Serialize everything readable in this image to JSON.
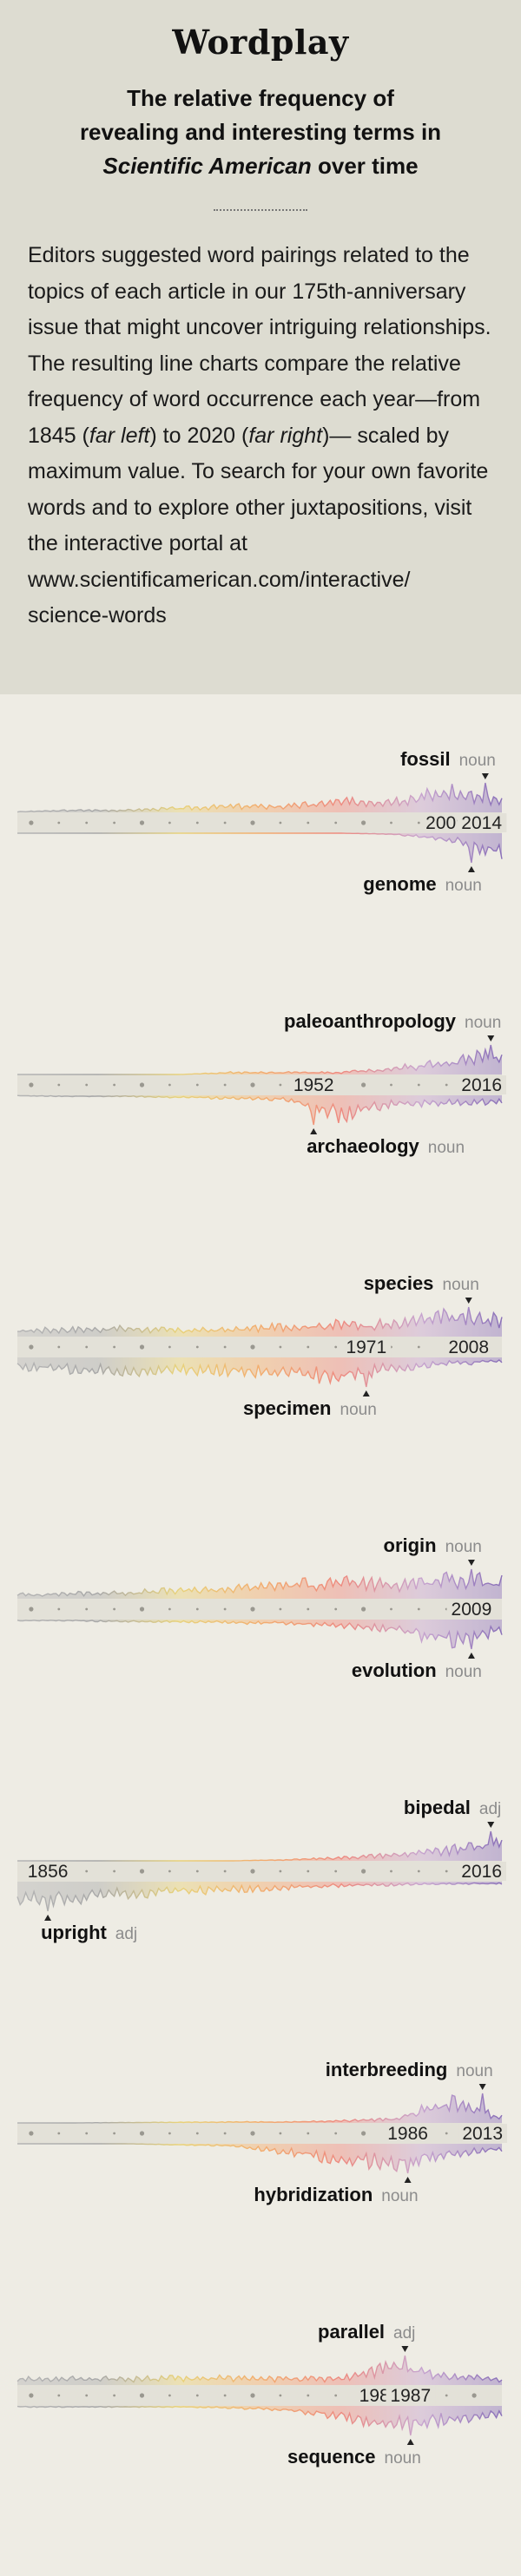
{
  "header": {
    "title": "Wordplay",
    "subtitle": {
      "line1": "The relative frequency of",
      "line2": "revealing and interesting terms in",
      "line3_italic": "Scientific American",
      "line3_rest": " over time"
    },
    "intro": {
      "part1": "Editors suggested word pairings related to the topics of each article in our 175th-anniversary issue that might uncover intriguing relationships. The resulting line charts compare the relative frequency of word occurrence each year—from 1845 (",
      "far_left": "far left",
      "part2": ") to 2020 (",
      "far_right": "far right",
      "part3": ")— scaled by maximum value. To search for your own favorite words and to explore other juxtapositions, visit the interactive portal at www.scientificamerican.com/interactive/ science-words"
    }
  },
  "colors": {
    "header_bg": "#dddcd1",
    "page_bg": "#eeece4",
    "baseline_band": "#e3e1d8",
    "axis_dots": "#9a9890",
    "label": "#111111",
    "pos_label": "#8c8c8c",
    "gradient": [
      "#b4b4b4",
      "#a8a8a8",
      "#e8d27a",
      "#f2ad6e",
      "#ee8a7f",
      "#c7a4cf",
      "#8a70b8"
    ]
  },
  "chart_data": [
    {
      "type": "area",
      "top_word": "fossil",
      "top_pos": "noun",
      "bottom_word": "genome",
      "bottom_pos": "noun",
      "x_range": [
        1845,
        2020
      ],
      "scale": "relative to maximum value",
      "annotated_years": [
        2009,
        2014
      ],
      "top_series": [
        0.03,
        0.1,
        0.1,
        0.2,
        0.3,
        0.3,
        0.5,
        0.6,
        1.0,
        0.5
      ],
      "top_peak_year": 2014,
      "bottom_series": [
        0.0,
        0.0,
        0.0,
        0.0,
        0.0,
        0.0,
        0.0,
        0.05,
        0.3,
        1.0
      ],
      "bottom_peak_year": 2009
    },
    {
      "type": "area",
      "top_word": "paleoanthropology",
      "top_pos": "noun",
      "bottom_word": "archaeology",
      "bottom_pos": "noun",
      "x_range": [
        1845,
        2020
      ],
      "scale": "relative to maximum value",
      "annotated_years": [
        1952,
        2016
      ],
      "top_series": [
        0.0,
        0.0,
        0.0,
        0.0,
        0.1,
        0.1,
        0.1,
        0.3,
        0.6,
        1.0
      ],
      "top_peak_year": 2016,
      "bottom_series": [
        0.02,
        0.05,
        0.05,
        0.1,
        0.15,
        0.2,
        1.0,
        0.4,
        0.4,
        0.3
      ],
      "bottom_peak_year": 1952
    },
    {
      "type": "area",
      "top_word": "species",
      "top_pos": "noun",
      "bottom_word": "specimen",
      "bottom_pos": "noun",
      "x_range": [
        1845,
        2020
      ],
      "scale": "relative to maximum value",
      "annotated_years": [
        1971,
        2008
      ],
      "top_series": [
        0.3,
        0.35,
        0.4,
        0.3,
        0.35,
        0.5,
        0.6,
        0.6,
        1.0,
        0.8
      ],
      "top_peak_year": 2008,
      "bottom_series": [
        0.5,
        0.6,
        0.7,
        0.6,
        0.65,
        0.8,
        1.0,
        0.5,
        0.3,
        0.2
      ],
      "bottom_peak_year": 1971
    },
    {
      "type": "area",
      "top_word": "origin",
      "top_pos": "noun",
      "bottom_word": "evolution",
      "bottom_pos": "noun",
      "x_range": [
        1845,
        2020
      ],
      "scale": "relative to maximum value",
      "annotated_years": [
        2009
      ],
      "top_series": [
        0.2,
        0.25,
        0.3,
        0.4,
        0.5,
        0.7,
        0.8,
        0.7,
        1.0,
        0.8
      ],
      "top_peak_year": 2009,
      "bottom_series": [
        0.05,
        0.05,
        0.1,
        0.1,
        0.15,
        0.2,
        0.3,
        0.5,
        1.0,
        0.6
      ],
      "bottom_peak_year": 2009
    },
    {
      "type": "area",
      "top_word": "bipedal",
      "top_pos": "adj",
      "bottom_word": "upright",
      "bottom_pos": "adj",
      "x_range": [
        1845,
        2020
      ],
      "scale": "relative to maximum value",
      "annotated_years": [
        1856,
        2016
      ],
      "top_series": [
        0.0,
        0.0,
        0.0,
        0.0,
        0.0,
        0.05,
        0.15,
        0.3,
        0.5,
        1.0
      ],
      "top_peak_year": 2016,
      "bottom_series": [
        1.0,
        0.8,
        0.6,
        0.5,
        0.4,
        0.3,
        0.2,
        0.15,
        0.1,
        0.1
      ],
      "bottom_peak_year": 1856
    },
    {
      "type": "area",
      "top_word": "interbreeding",
      "top_pos": "noun",
      "bottom_word": "hybridization",
      "bottom_pos": "noun",
      "x_range": [
        1845,
        2020
      ],
      "scale": "relative to maximum value",
      "annotated_years": [
        1986,
        2013
      ],
      "top_series": [
        0.0,
        0.0,
        0.02,
        0.03,
        0.05,
        0.05,
        0.1,
        0.2,
        1.0,
        0.3
      ],
      "top_peak_year": 2013,
      "bottom_series": [
        0.0,
        0.0,
        0.0,
        0.05,
        0.1,
        0.4,
        0.8,
        1.0,
        0.5,
        0.3
      ],
      "bottom_peak_year": 1986
    },
    {
      "type": "area",
      "top_word": "parallel",
      "top_pos": "adj",
      "bottom_word": "sequence",
      "bottom_pos": "noun",
      "x_range": [
        1845,
        2020
      ],
      "scale": "relative to maximum value",
      "annotated_years": [
        1985,
        1987
      ],
      "top_series": [
        0.3,
        0.3,
        0.3,
        0.35,
        0.35,
        0.3,
        0.3,
        1.0,
        0.4,
        0.3
      ],
      "top_peak_year": 1985,
      "bottom_series": [
        0.05,
        0.05,
        0.05,
        0.05,
        0.1,
        0.2,
        0.5,
        1.0,
        0.7,
        0.4
      ],
      "bottom_peak_year": 1987
    }
  ]
}
